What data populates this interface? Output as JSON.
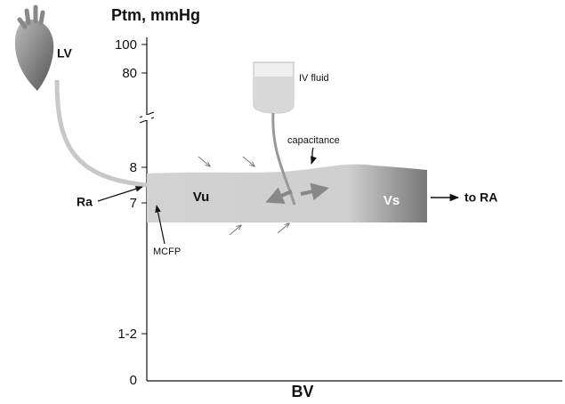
{
  "axes": {
    "y_title": "Ptm, mmHg",
    "x_title": "BV",
    "y_tick_labels": [
      "100",
      "80",
      "8",
      "7",
      "1-2",
      "0"
    ]
  },
  "labels": {
    "heart": "LV",
    "iv": "IV fluid",
    "capacitance": "capacitance",
    "unstressed": "Vu",
    "stressed": "Vs",
    "outflow": "to RA",
    "resistance": "Ra",
    "mcfp": "MCFP"
  }
}
